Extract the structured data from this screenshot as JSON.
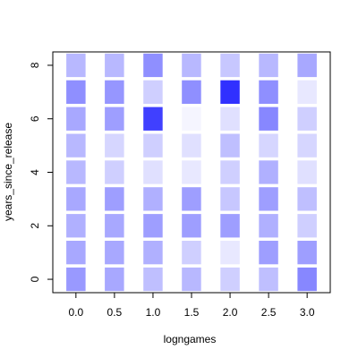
{
  "chart_data": {
    "type": "heatmap",
    "xlabel": "logngames",
    "ylabel": "years_since_release",
    "x_values": [
      0.0,
      0.5,
      1.0,
      1.5,
      2.0,
      2.5,
      3.0
    ],
    "y_values": [
      0,
      1,
      2,
      3,
      4,
      5,
      6,
      7,
      8
    ],
    "x_tick_labels": [
      "0.0",
      "0.5",
      "1.0",
      "1.5",
      "2.0",
      "2.5",
      "3.0"
    ],
    "y_tick_labels": [
      "0",
      "2",
      "4",
      "6",
      "8"
    ],
    "y_tick_values": [
      0,
      2,
      4,
      6,
      8
    ],
    "xlim": [
      -0.3,
      3.3
    ],
    "ylim": [
      -0.5,
      8.5
    ],
    "grid": false,
    "colors": {
      "high": "#0000ff",
      "low": "#ffffff",
      "frame": "#000000"
    },
    "intensity_note_scale": [
      0,
      1
    ],
    "intensity": [
      [
        0.4,
        0.34,
        0.25,
        0.28,
        0.19,
        0.25,
        0.47
      ],
      [
        0.34,
        0.34,
        0.31,
        0.19,
        0.09,
        0.38,
        0.38
      ],
      [
        0.31,
        0.34,
        0.38,
        0.38,
        0.38,
        0.31,
        0.19
      ],
      [
        0.34,
        0.38,
        0.31,
        0.38,
        0.22,
        0.38,
        0.25
      ],
      [
        0.28,
        0.19,
        0.12,
        0.09,
        0.19,
        0.31,
        0.12
      ],
      [
        0.28,
        0.16,
        0.19,
        0.12,
        0.25,
        0.16,
        0.16
      ],
      [
        0.34,
        0.38,
        0.75,
        0.04,
        0.12,
        0.47,
        0.19
      ],
      [
        0.44,
        0.41,
        0.19,
        0.44,
        0.81,
        0.44,
        0.09
      ],
      [
        0.28,
        0.28,
        0.44,
        0.28,
        0.22,
        0.28,
        0.34
      ]
    ]
  }
}
